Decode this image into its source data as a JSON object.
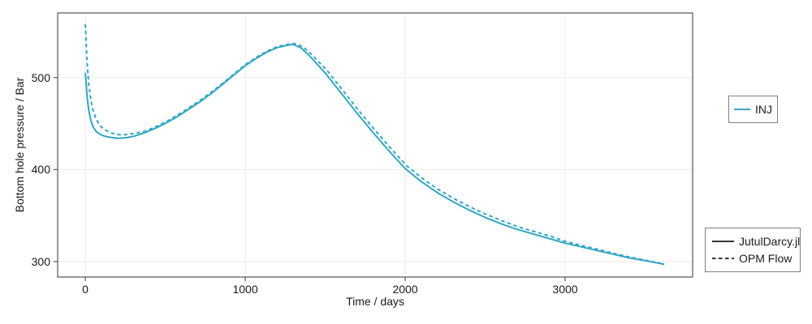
{
  "chart_data": {
    "type": "line",
    "title": "",
    "xlabel": "Time / days",
    "ylabel": "Bottom hole pressure / Bar",
    "xlim": [
      -173,
      3797
    ],
    "ylim": [
      283.2,
      570.2
    ],
    "xticks": [
      0,
      1000,
      2000,
      3000
    ],
    "yticks": [
      300,
      400,
      500
    ],
    "grid": true,
    "well_legend": "INJ",
    "legend_position": {
      "well_legend": "right-center",
      "series_legend": "right-bottom"
    },
    "colors": {
      "series": "#33A6C4",
      "grid": "#EBEBEB",
      "axis": "#555555",
      "text": "#1A1A1A",
      "legend_border": "#808080"
    },
    "series": [
      {
        "name": "JutulDarcy.jl",
        "style": "solid",
        "color": "#33A6C4",
        "points": [
          [
            0,
            505
          ],
          [
            5,
            494
          ],
          [
            12,
            478
          ],
          [
            22,
            464
          ],
          [
            35,
            453
          ],
          [
            50,
            446
          ],
          [
            70,
            441
          ],
          [
            95,
            438
          ],
          [
            125,
            436
          ],
          [
            160,
            435
          ],
          [
            200,
            434
          ],
          [
            250,
            434.5
          ],
          [
            300,
            436
          ],
          [
            370,
            440
          ],
          [
            440,
            445
          ],
          [
            510,
            451
          ],
          [
            580,
            458
          ],
          [
            650,
            466
          ],
          [
            720,
            474
          ],
          [
            790,
            483
          ],
          [
            860,
            493
          ],
          [
            930,
            503
          ],
          [
            1000,
            513
          ],
          [
            1070,
            521
          ],
          [
            1140,
            528
          ],
          [
            1200,
            532.5
          ],
          [
            1260,
            535
          ],
          [
            1300,
            536
          ],
          [
            1350,
            532
          ],
          [
            1400,
            524
          ],
          [
            1500,
            505
          ],
          [
            1600,
            483
          ],
          [
            1700,
            461
          ],
          [
            1800,
            440
          ],
          [
            1900,
            420
          ],
          [
            2000,
            401
          ],
          [
            2100,
            387
          ],
          [
            2200,
            375
          ],
          [
            2300,
            365
          ],
          [
            2400,
            356
          ],
          [
            2500,
            348
          ],
          [
            2600,
            341
          ],
          [
            2700,
            335
          ],
          [
            2800,
            330
          ],
          [
            2900,
            325
          ],
          [
            3000,
            320
          ],
          [
            3100,
            316
          ],
          [
            3200,
            312
          ],
          [
            3300,
            308
          ],
          [
            3400,
            304
          ],
          [
            3500,
            301
          ],
          [
            3620,
            297
          ]
        ]
      },
      {
        "name": "OPM Flow",
        "style": "dashed",
        "color": "#33A6C4",
        "points": [
          [
            0,
            558
          ],
          [
            5,
            539
          ],
          [
            12,
            514
          ],
          [
            22,
            492
          ],
          [
            35,
            475
          ],
          [
            50,
            463
          ],
          [
            70,
            454
          ],
          [
            95,
            447
          ],
          [
            125,
            443
          ],
          [
            160,
            440
          ],
          [
            200,
            438
          ],
          [
            250,
            438
          ],
          [
            300,
            439
          ],
          [
            370,
            441.5
          ],
          [
            440,
            446.5
          ],
          [
            510,
            452.5
          ],
          [
            580,
            459.5
          ],
          [
            650,
            467.5
          ],
          [
            720,
            475.5
          ],
          [
            790,
            484.5
          ],
          [
            860,
            494
          ],
          [
            930,
            504
          ],
          [
            1000,
            514
          ],
          [
            1070,
            522
          ],
          [
            1140,
            529
          ],
          [
            1200,
            533.5
          ],
          [
            1260,
            536
          ],
          [
            1310,
            537
          ],
          [
            1360,
            533.5
          ],
          [
            1410,
            526
          ],
          [
            1510,
            508
          ],
          [
            1610,
            486
          ],
          [
            1710,
            464
          ],
          [
            1810,
            443
          ],
          [
            1910,
            423
          ],
          [
            2010,
            404
          ],
          [
            2110,
            390
          ],
          [
            2210,
            378
          ],
          [
            2310,
            368
          ],
          [
            2410,
            359
          ],
          [
            2510,
            351
          ],
          [
            2610,
            344
          ],
          [
            2710,
            337.5
          ],
          [
            2810,
            332.5
          ],
          [
            2910,
            327.5
          ],
          [
            3000,
            322
          ],
          [
            3100,
            317.5
          ],
          [
            3200,
            313.5
          ],
          [
            3300,
            309
          ],
          [
            3400,
            305
          ],
          [
            3500,
            301.5
          ],
          [
            3620,
            297.3
          ]
        ]
      }
    ]
  }
}
